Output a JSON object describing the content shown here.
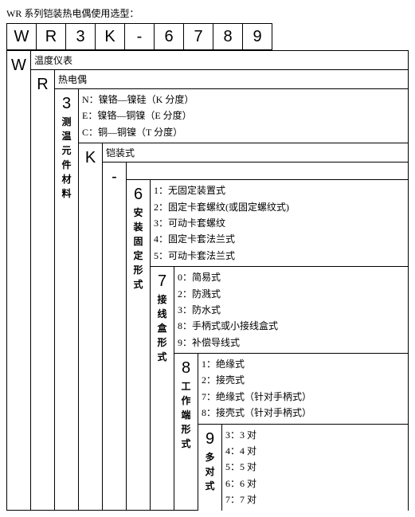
{
  "title": "WR 系列铠装热电偶使用选型：",
  "code": [
    "W",
    "R",
    "3",
    "K",
    "-",
    "6",
    "7",
    "8",
    "9"
  ],
  "col1": {
    "big": "W",
    "header": "温度仪表"
  },
  "col2": {
    "big": "R",
    "header": "热电偶"
  },
  "col3": {
    "big": "3",
    "vlabel": "测温元件材料",
    "lines": [
      "N：镍铬—镍硅（K 分度）",
      "E：镍铬—铜镍（E 分度）",
      "C：铜—铜镍（T 分度）"
    ]
  },
  "col4": {
    "big": "K",
    "header": "铠装式"
  },
  "col5": {
    "big": "-"
  },
  "col6": {
    "big": "6",
    "vlabel": "安装固定形式",
    "lines": [
      "1：无固定装置式",
      "2：固定卡套螺纹(或固定螺纹式)",
      "3：可动卡套螺纹",
      "4：固定卡套法兰式",
      "5：可动卡套法兰式"
    ]
  },
  "col7": {
    "big": "7",
    "vlabel": "接线盒形式",
    "lines": [
      "0：简易式",
      "2：防溅式",
      "3：防水式",
      "8：手柄式或小接线盒式",
      "9：补偿导线式"
    ]
  },
  "col8": {
    "big": "8",
    "vlabel": "工作端形式",
    "lines": [
      "1：绝缘式",
      "2：接壳式",
      "7：绝缘式（针对手柄式）",
      "8：接壳式（针对手柄式）"
    ]
  },
  "col9": {
    "big": "9",
    "vlabel": "多对式",
    "lines": [
      "3：3 对",
      "4：4 对",
      "5：5 对",
      "6：6 对",
      "7：7 对"
    ]
  }
}
